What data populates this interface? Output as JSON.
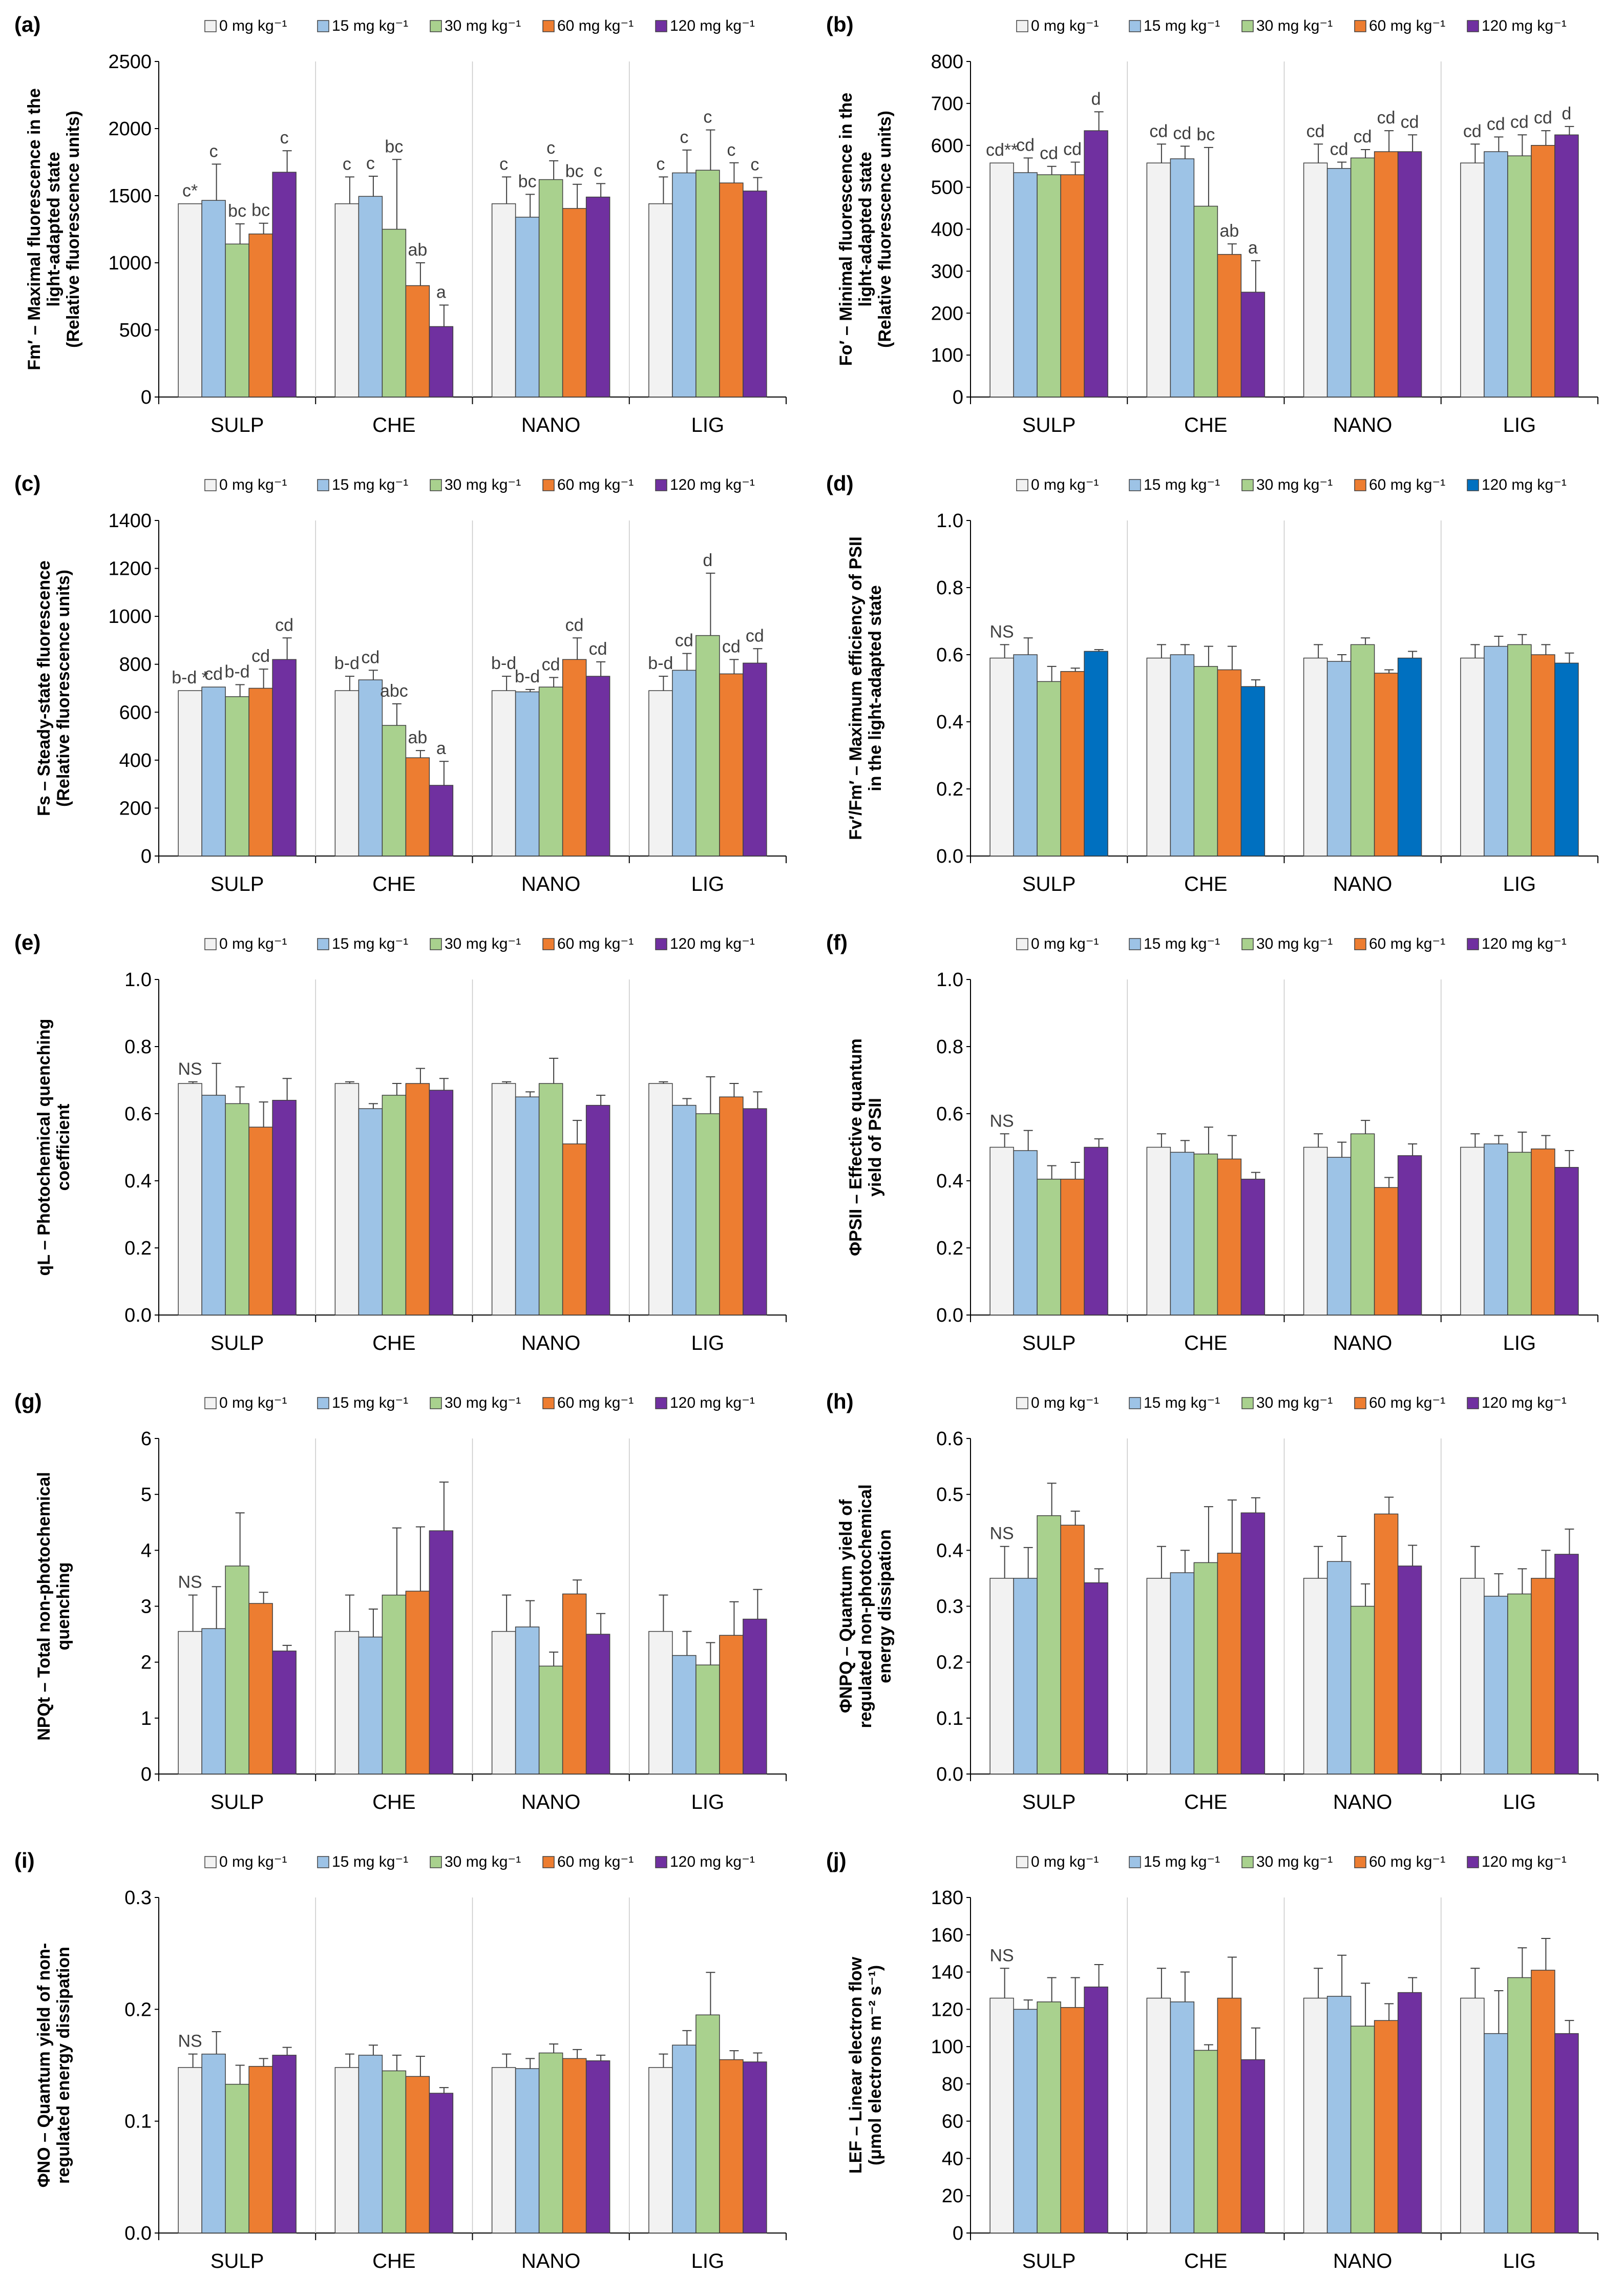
{
  "categories": [
    "SULP",
    "CHE",
    "NANO",
    "LIG"
  ],
  "legend": [
    "0 mg kg⁻¹",
    "15 mg kg⁻¹",
    "30 mg kg⁻¹",
    "60 mg kg⁻¹",
    "120 mg kg⁻¹"
  ],
  "colors": {
    "0": "#f2f2f2",
    "15": "#9dc3e6",
    "30": "#a9d18e",
    "60": "#ed7d31",
    "120": "#7030a0",
    "120_alt": "#0070c0"
  },
  "chart_data": [
    {
      "id": "a",
      "panel_label": "(a)",
      "type": "bar",
      "ylabel": [
        "Fm′ – Maximal fluorescence in the",
        "light-adapted state",
        "(Relative fluorescence units)"
      ],
      "ylim": [
        0,
        2500
      ],
      "yticks": [
        0,
        500,
        1000,
        1500,
        2000,
        2500
      ],
      "values": [
        [
          1440,
          1465,
          1140,
          1215,
          1675
        ],
        [
          1440,
          1495,
          1250,
          830,
          525
        ],
        [
          1440,
          1340,
          1620,
          1405,
          1490
        ],
        [
          1440,
          1670,
          1690,
          1595,
          1535
        ]
      ],
      "errors": [
        [
          0,
          270,
          150,
          80,
          160
        ],
        [
          200,
          150,
          520,
          170,
          160
        ],
        [
          200,
          170,
          140,
          180,
          100
        ],
        [
          200,
          170,
          300,
          150,
          100
        ]
      ],
      "annotations": [
        [
          "c*",
          "c",
          "bc",
          "bc",
          "c"
        ],
        [
          "c",
          "c",
          "bc",
          "ab",
          "a"
        ],
        [
          "c",
          "bc",
          "c",
          "bc",
          "c"
        ],
        [
          "c",
          "c",
          "c",
          "c",
          "c"
        ]
      ]
    },
    {
      "id": "b",
      "panel_label": "(b)",
      "type": "bar",
      "ylabel": [
        "Fo′ – Minimal fluorescence in the",
        "light-adapted state",
        "(Relative fluorescence units)"
      ],
      "ylim": [
        0,
        800
      ],
      "yticks": [
        0,
        100,
        200,
        300,
        400,
        500,
        600,
        700,
        800
      ],
      "values": [
        [
          558,
          535,
          530,
          530,
          635
        ],
        [
          558,
          568,
          455,
          340,
          250
        ],
        [
          558,
          545,
          570,
          585,
          585
        ],
        [
          558,
          585,
          575,
          600,
          625
        ]
      ],
      "errors": [
        [
          0,
          35,
          20,
          30,
          45
        ],
        [
          45,
          30,
          140,
          25,
          75
        ],
        [
          45,
          15,
          20,
          50,
          40
        ],
        [
          45,
          35,
          50,
          35,
          20
        ]
      ],
      "annotations": [
        [
          "cd**",
          "cd",
          "cd",
          "cd",
          "d"
        ],
        [
          "cd",
          "cd",
          "bc",
          "ab",
          "a"
        ],
        [
          "cd",
          "cd",
          "cd",
          "cd",
          "cd"
        ],
        [
          "cd",
          "cd",
          "cd",
          "cd",
          "d"
        ]
      ]
    },
    {
      "id": "c",
      "panel_label": "(c)",
      "type": "bar",
      "ylabel": [
        "Fs – Steady-state fluorescence",
        "(Relative fluorescence units)"
      ],
      "ylim": [
        0,
        1400
      ],
      "yticks": [
        0,
        200,
        400,
        600,
        800,
        1000,
        1200,
        1400
      ],
      "values": [
        [
          690,
          705,
          665,
          700,
          820
        ],
        [
          690,
          735,
          545,
          410,
          295
        ],
        [
          690,
          685,
          705,
          820,
          750
        ],
        [
          690,
          775,
          920,
          760,
          805
        ]
      ],
      "errors": [
        [
          0,
          0,
          50,
          80,
          90
        ],
        [
          60,
          40,
          90,
          30,
          100
        ],
        [
          60,
          10,
          40,
          90,
          60
        ],
        [
          60,
          70,
          260,
          60,
          60
        ]
      ],
      "annotations": [
        [
          "b-d *",
          "cd",
          "b-d",
          "cd",
          "cd"
        ],
        [
          "b-d",
          "cd",
          "abc",
          "ab",
          "a"
        ],
        [
          "b-d",
          "b-d",
          "cd",
          "cd",
          "cd"
        ],
        [
          "b-d",
          "cd",
          "d",
          "cd",
          "cd"
        ]
      ]
    },
    {
      "id": "d",
      "panel_label": "(d)",
      "type": "bar",
      "ylabel": [
        "Fv′/Fm′ – Maximum efficiency of PSII",
        "in the light-adapted state"
      ],
      "ylim": [
        0,
        1
      ],
      "yticks": [
        0.0,
        0.2,
        0.4,
        0.6,
        0.8,
        1.0
      ],
      "decimals": 1,
      "values": [
        [
          0.59,
          0.6,
          0.52,
          0.55,
          0.61
        ],
        [
          0.59,
          0.6,
          0.565,
          0.555,
          0.505
        ],
        [
          0.59,
          0.58,
          0.63,
          0.545,
          0.59
        ],
        [
          0.59,
          0.625,
          0.63,
          0.6,
          0.575
        ]
      ],
      "errors": [
        [
          0.04,
          0.05,
          0.045,
          0.01,
          0.005
        ],
        [
          0.04,
          0.03,
          0.06,
          0.07,
          0.02
        ],
        [
          0.04,
          0.02,
          0.02,
          0.01,
          0.02
        ],
        [
          0.04,
          0.03,
          0.03,
          0.03,
          0.03
        ]
      ],
      "annotations": [
        [
          "NS",
          "",
          "",
          "",
          ""
        ],
        [
          "",
          "",
          "",
          "",
          ""
        ],
        [
          "",
          "",
          "",
          "",
          ""
        ],
        [
          "",
          "",
          "",
          "",
          ""
        ]
      ]
    },
    {
      "id": "e",
      "panel_label": "(e)",
      "type": "bar",
      "ylabel": [
        "qL – Photochemical quenching",
        "coefficient"
      ],
      "ylim": [
        0,
        1
      ],
      "yticks": [
        0.0,
        0.2,
        0.4,
        0.6,
        0.8,
        1.0
      ],
      "decimals": 1,
      "values": [
        [
          0.69,
          0.655,
          0.63,
          0.56,
          0.64
        ],
        [
          0.69,
          0.615,
          0.655,
          0.69,
          0.67
        ],
        [
          0.69,
          0.65,
          0.69,
          0.51,
          0.625
        ],
        [
          0.69,
          0.625,
          0.6,
          0.65,
          0.615
        ]
      ],
      "errors": [
        [
          0.005,
          0.095,
          0.05,
          0.075,
          0.065
        ],
        [
          0.005,
          0.015,
          0.035,
          0.045,
          0.035
        ],
        [
          0.005,
          0.015,
          0.075,
          0.07,
          0.03
        ],
        [
          0.005,
          0.02,
          0.11,
          0.04,
          0.05
        ]
      ],
      "annotations": [
        [
          "NS",
          "",
          "",
          "",
          ""
        ],
        [
          "",
          "",
          "",
          "",
          ""
        ],
        [
          "",
          "",
          "",
          "",
          ""
        ],
        [
          "",
          "",
          "",
          "",
          ""
        ]
      ]
    },
    {
      "id": "f",
      "panel_label": "(f)",
      "type": "bar",
      "ylabel": [
        "ΦPSII – Effective quantum",
        "yield of PSII"
      ],
      "ylim": [
        0,
        1
      ],
      "yticks": [
        0.0,
        0.2,
        0.4,
        0.6,
        0.8,
        1.0
      ],
      "decimals": 1,
      "values": [
        [
          0.5,
          0.49,
          0.405,
          0.405,
          0.5
        ],
        [
          0.5,
          0.485,
          0.48,
          0.465,
          0.405
        ],
        [
          0.5,
          0.47,
          0.54,
          0.38,
          0.475
        ],
        [
          0.5,
          0.51,
          0.485,
          0.495,
          0.44
        ]
      ],
      "errors": [
        [
          0.04,
          0.06,
          0.04,
          0.05,
          0.025
        ],
        [
          0.04,
          0.035,
          0.08,
          0.07,
          0.02
        ],
        [
          0.04,
          0.045,
          0.04,
          0.03,
          0.035
        ],
        [
          0.04,
          0.025,
          0.06,
          0.04,
          0.05
        ]
      ],
      "annotations": [
        [
          "NS",
          "",
          "",
          "",
          ""
        ],
        [
          "",
          "",
          "",
          "",
          ""
        ],
        [
          "",
          "",
          "",
          "",
          ""
        ],
        [
          "",
          "",
          "",
          "",
          ""
        ]
      ]
    },
    {
      "id": "g",
      "panel_label": "(g)",
      "type": "bar",
      "ylabel": [
        "NPQt – Total non-photochemical",
        "quenching"
      ],
      "ylim": [
        0,
        6
      ],
      "yticks": [
        0,
        1,
        2,
        3,
        4,
        5,
        6
      ],
      "values": [
        [
          2.55,
          2.6,
          3.72,
          3.05,
          2.2
        ],
        [
          2.55,
          2.45,
          3.2,
          3.27,
          4.35
        ],
        [
          2.55,
          2.63,
          1.93,
          3.22,
          2.5
        ],
        [
          2.55,
          2.12,
          1.95,
          2.48,
          2.77
        ]
      ],
      "errors": [
        [
          0.65,
          0.75,
          0.95,
          0.2,
          0.1
        ],
        [
          0.65,
          0.5,
          1.2,
          1.15,
          0.87
        ],
        [
          0.65,
          0.47,
          0.25,
          0.25,
          0.37
        ],
        [
          0.65,
          0.43,
          0.4,
          0.6,
          0.53
        ]
      ],
      "annotations": [
        [
          "NS",
          "",
          "",
          "",
          ""
        ],
        [
          "",
          "",
          "",
          "",
          ""
        ],
        [
          "",
          "",
          "",
          "",
          ""
        ],
        [
          "",
          "",
          "",
          "",
          ""
        ]
      ]
    },
    {
      "id": "h",
      "panel_label": "(h)",
      "type": "bar",
      "ylabel": [
        "ΦNPQ – Quantum yield of",
        "regulated non-photochemical",
        "energy dissipation"
      ],
      "ylim": [
        0,
        0.6
      ],
      "yticks": [
        0.0,
        0.1,
        0.2,
        0.3,
        0.4,
        0.5,
        0.6
      ],
      "decimals": 1,
      "values": [
        [
          0.35,
          0.35,
          0.462,
          0.445,
          0.342
        ],
        [
          0.35,
          0.36,
          0.378,
          0.395,
          0.467
        ],
        [
          0.35,
          0.38,
          0.3,
          0.465,
          0.372
        ],
        [
          0.35,
          0.318,
          0.322,
          0.35,
          0.393
        ]
      ],
      "errors": [
        [
          0.057,
          0.055,
          0.058,
          0.025,
          0.025
        ],
        [
          0.057,
          0.04,
          0.1,
          0.095,
          0.027
        ],
        [
          0.057,
          0.045,
          0.04,
          0.03,
          0.037
        ],
        [
          0.057,
          0.04,
          0.045,
          0.05,
          0.045
        ]
      ],
      "annotations": [
        [
          "NS",
          "",
          "",
          "",
          ""
        ],
        [
          "",
          "",
          "",
          "",
          ""
        ],
        [
          "",
          "",
          "",
          "",
          ""
        ],
        [
          "",
          "",
          "",
          "",
          ""
        ]
      ]
    },
    {
      "id": "i",
      "panel_label": "(i)",
      "type": "bar",
      "ylabel": [
        "ΦNO – Quantum yield of non-",
        "regulated energy dissipation"
      ],
      "ylim": [
        0,
        0.3
      ],
      "yticks": [
        0.0,
        0.1,
        0.2,
        0.3
      ],
      "decimals": 1,
      "values": [
        [
          0.148,
          0.16,
          0.133,
          0.149,
          0.159
        ],
        [
          0.148,
          0.159,
          0.145,
          0.14,
          0.125
        ],
        [
          0.148,
          0.147,
          0.161,
          0.156,
          0.154
        ],
        [
          0.148,
          0.168,
          0.195,
          0.155,
          0.153
        ]
      ],
      "errors": [
        [
          0.012,
          0.02,
          0.017,
          0.007,
          0.007
        ],
        [
          0.012,
          0.009,
          0.014,
          0.018,
          0.005
        ],
        [
          0.012,
          0.009,
          0.008,
          0.008,
          0.005
        ],
        [
          0.012,
          0.013,
          0.038,
          0.008,
          0.008
        ]
      ],
      "annotations": [
        [
          "NS",
          "",
          "",
          "",
          ""
        ],
        [
          "",
          "",
          "",
          "",
          ""
        ],
        [
          "",
          "",
          "",
          "",
          ""
        ],
        [
          "",
          "",
          "",
          "",
          ""
        ]
      ]
    },
    {
      "id": "j",
      "panel_label": "(j)",
      "type": "bar",
      "ylabel": [
        "LEF – Linear electron flow",
        "(μmol electrons m⁻² s⁻¹)"
      ],
      "ylim": [
        0,
        180
      ],
      "yticks": [
        0,
        20,
        40,
        60,
        80,
        100,
        120,
        140,
        160,
        180
      ],
      "values": [
        [
          126,
          120,
          124,
          121,
          132
        ],
        [
          126,
          124,
          98,
          126,
          93
        ],
        [
          126,
          127,
          111,
          114,
          129
        ],
        [
          126,
          107,
          137,
          141,
          107
        ]
      ],
      "errors": [
        [
          16,
          5,
          13,
          16,
          12
        ],
        [
          16,
          16,
          3,
          22,
          17
        ],
        [
          16,
          22,
          23,
          9,
          8
        ],
        [
          16,
          23,
          16,
          17,
          7
        ]
      ],
      "annotations": [
        [
          "NS",
          "",
          "",
          "",
          ""
        ],
        [
          "",
          "",
          "",
          "",
          ""
        ],
        [
          "",
          "",
          "",
          "",
          ""
        ],
        [
          "",
          "",
          "",
          "",
          ""
        ]
      ]
    }
  ]
}
